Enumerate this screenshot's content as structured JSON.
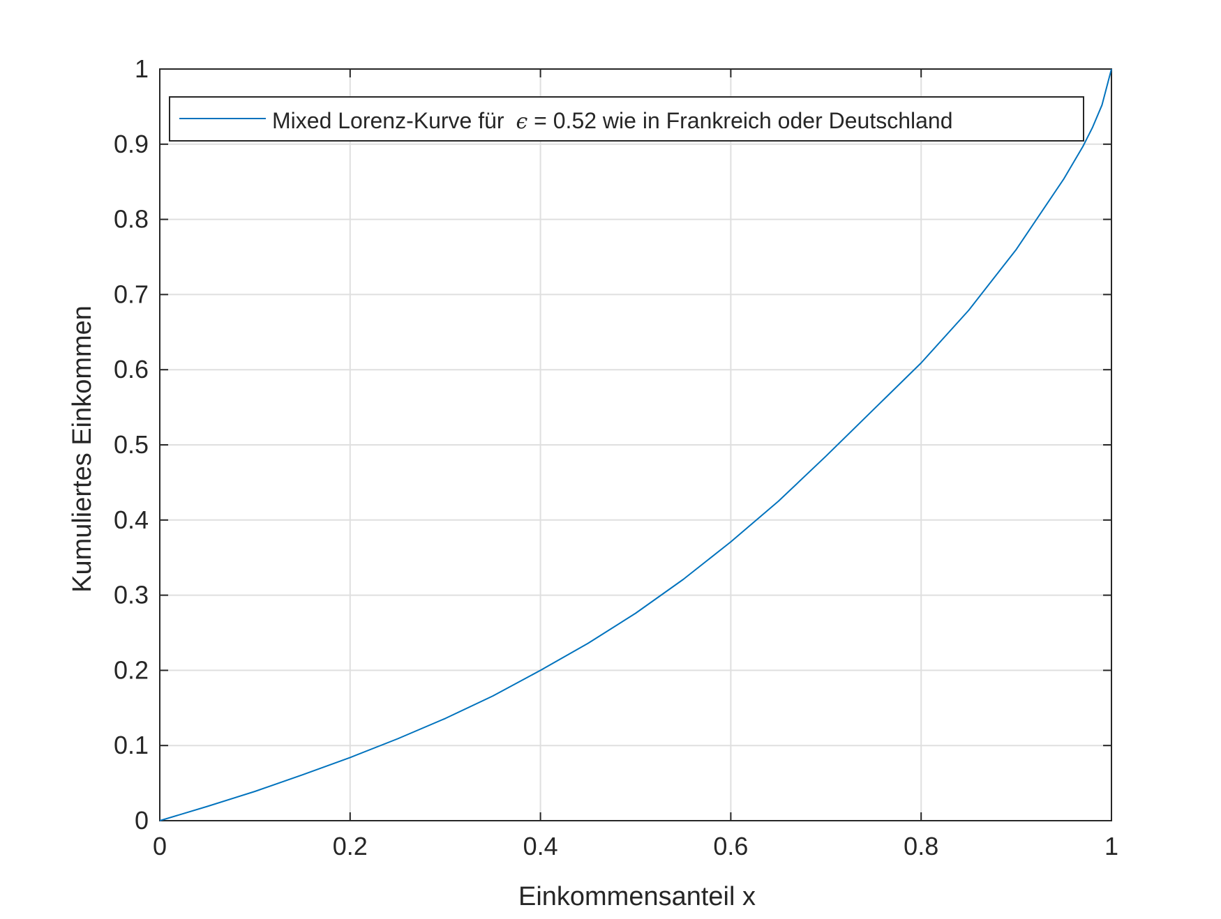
{
  "chart_data": {
    "type": "line",
    "title": "",
    "xlabel": "Einkommensanteil x",
    "ylabel": "Kumuliertes Einkommen",
    "xlim": [
      0,
      1
    ],
    "ylim": [
      0,
      1
    ],
    "grid": true,
    "legend_position": "top",
    "x_ticks": [
      "0",
      "0.2",
      "0.4",
      "0.6",
      "0.8",
      "1"
    ],
    "y_ticks": [
      "0",
      "0.1",
      "0.2",
      "0.3",
      "0.4",
      "0.5",
      "0.6",
      "0.7",
      "0.8",
      "0.9",
      "1"
    ],
    "legend": {
      "prefix": "Mixed Lorenz-Kurve für ",
      "symbol": "ϵ",
      "suffix": " = 0.52 wie in Frankreich oder Deutschland"
    },
    "series": [
      {
        "name": "Mixed Lorenz-Kurve für ϵ = 0.52 wie in Frankreich oder Deutschland",
        "color": "#0072bd",
        "x": [
          0,
          0.05,
          0.1,
          0.15,
          0.2,
          0.25,
          0.3,
          0.35,
          0.4,
          0.45,
          0.5,
          0.55,
          0.6,
          0.65,
          0.7,
          0.75,
          0.8,
          0.85,
          0.9,
          0.95,
          0.97,
          0.98,
          0.99,
          1
        ],
        "y": [
          0,
          0.019,
          0.039,
          0.061,
          0.084,
          0.109,
          0.136,
          0.166,
          0.2,
          0.236,
          0.276,
          0.321,
          0.371,
          0.425,
          0.485,
          0.547,
          0.609,
          0.679,
          0.76,
          0.854,
          0.897,
          0.922,
          0.952,
          1
        ]
      }
    ]
  }
}
